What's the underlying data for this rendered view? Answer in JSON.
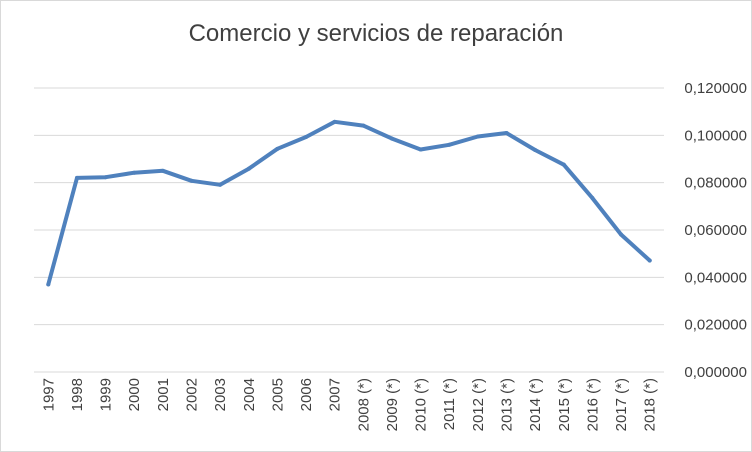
{
  "chart_data": {
    "type": "line",
    "title": "Comercio y servicios de reparación",
    "categories": [
      "1997",
      "1998",
      "1999",
      "2000",
      "2001",
      "2002",
      "2003",
      "2004",
      "2005",
      "2006",
      "2007",
      "2008 (*)",
      "2009 (*)",
      "2010 (*)",
      "2011 (*)",
      "2012 (*)",
      "2013 (*)",
      "2014 (*)",
      "2015 (*)",
      "2016 (*)",
      "2017 (*)",
      "2018 (*)"
    ],
    "series": [
      {
        "values": [
          0.037,
          0.082,
          0.0823,
          0.0842,
          0.085,
          0.0808,
          0.0791,
          0.0859,
          0.0943,
          0.0993,
          0.1057,
          0.1041,
          0.0986,
          0.094,
          0.096,
          0.0995,
          0.101,
          0.0938,
          0.0876,
          0.0735,
          0.0581,
          0.0471
        ]
      }
    ],
    "y_ticks": [
      "0,000000",
      "0,020000",
      "0,040000",
      "0,060000",
      "0,080000",
      "0,100000",
      "0,120000"
    ],
    "ylim": [
      0,
      0.12
    ],
    "y_axis_side": "right",
    "grid": true,
    "legend": "none",
    "line_color": "#4f81bd"
  }
}
